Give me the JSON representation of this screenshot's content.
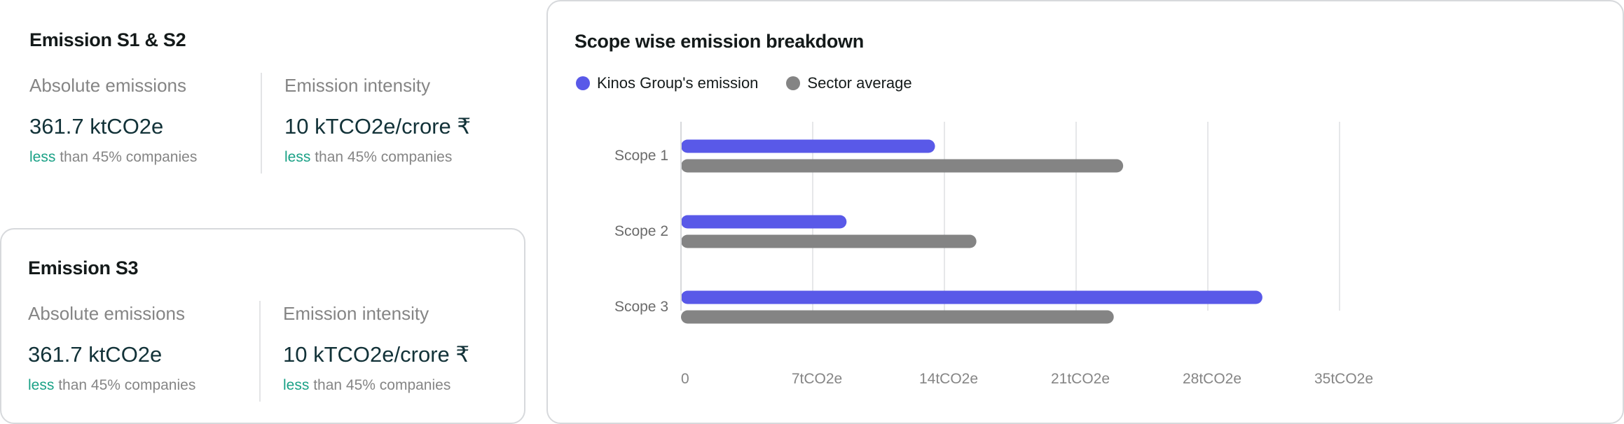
{
  "s1s2": {
    "title": "Emission S1 & S2",
    "absolute": {
      "label": "Absolute emissions",
      "value": "361.7 ktCO2e",
      "note_hl": "less",
      "note_rest": " than 45% companies"
    },
    "intensity": {
      "label": "Emission intensity",
      "value": "10 kTCO2e/crore ₹",
      "note_hl": "less",
      "note_rest": " than 45% companies"
    }
  },
  "s3": {
    "title": "Emission S3",
    "absolute": {
      "label": "Absolute emissions",
      "value": "361.7 ktCO2e",
      "note_hl": "less",
      "note_rest": " than 45% companies"
    },
    "intensity": {
      "label": "Emission intensity",
      "value": "10 kTCO2e/crore ₹",
      "note_hl": "less",
      "note_rest": " than 45% companies"
    }
  },
  "chart": {
    "title": "Scope wise emission breakdown",
    "legend": [
      {
        "label": "Kinos Group's emission",
        "color": "#5959e8"
      },
      {
        "label": "Sector average",
        "color": "#848484"
      }
    ]
  },
  "chart_data": {
    "type": "bar",
    "orientation": "horizontal",
    "title": "Scope wise emission breakdown",
    "categories": [
      "Scope 1",
      "Scope 2",
      "Scope 3"
    ],
    "series": [
      {
        "name": "Kinos Group's emission",
        "color": "#5959e8",
        "values": [
          13.5,
          8.8,
          30.9
        ]
      },
      {
        "name": "Sector average",
        "color": "#848484",
        "values": [
          23.5,
          15.7,
          23.0
        ]
      }
    ],
    "xlim": [
      0,
      35
    ],
    "xticks": [
      0,
      7,
      14,
      21,
      28,
      35
    ],
    "xtick_labels": [
      "0",
      "7tCO2e",
      "14tCO2e",
      "21tCO2e",
      "28tCO2e",
      "35tCO2e"
    ],
    "grid": true,
    "legend_position": "top-left"
  }
}
